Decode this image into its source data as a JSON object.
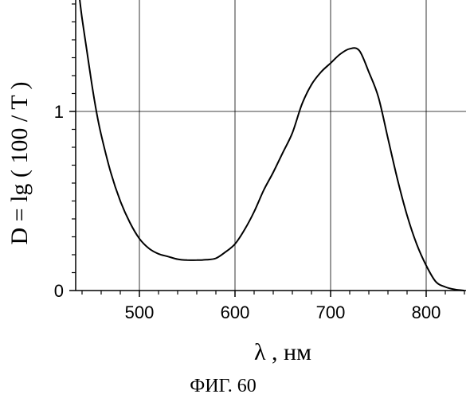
{
  "chart_data": {
    "type": "line",
    "title": "",
    "xlabel": "λ , нм",
    "ylabel": "D = lg ( 100 / T )",
    "caption": "ФИГ. 60",
    "xlim": [
      430,
      840
    ],
    "ylim": [
      0,
      1.65
    ],
    "grid": true,
    "x_ticks": [
      {
        "value": 500,
        "label": "500"
      },
      {
        "value": 600,
        "label": "600"
      },
      {
        "value": 700,
        "label": "700"
      },
      {
        "value": 800,
        "label": "800"
      }
    ],
    "y_ticks": [
      {
        "value": 0,
        "label": "0"
      },
      {
        "value": 1,
        "label": "1"
      }
    ],
    "x_minor_step": 20,
    "y_minor_step": 0.1,
    "series": [
      {
        "name": "",
        "color": "#000000",
        "x": [
          437,
          440,
          445,
          450,
          455,
          460,
          470,
          480,
          490,
          500,
          510,
          520,
          530,
          540,
          550,
          560,
          570,
          580,
          590,
          600,
          610,
          620,
          630,
          640,
          650,
          660,
          670,
          680,
          690,
          700,
          710,
          720,
          730,
          740,
          750,
          760,
          770,
          780,
          790,
          800,
          810,
          820,
          830,
          840
        ],
        "values": [
          1.65,
          1.52,
          1.34,
          1.16,
          1.0,
          0.87,
          0.66,
          0.5,
          0.38,
          0.29,
          0.235,
          0.205,
          0.19,
          0.175,
          0.17,
          0.17,
          0.172,
          0.18,
          0.215,
          0.26,
          0.34,
          0.44,
          0.56,
          0.66,
          0.77,
          0.88,
          1.04,
          1.15,
          1.22,
          1.27,
          1.32,
          1.35,
          1.34,
          1.22,
          1.08,
          0.85,
          0.62,
          0.42,
          0.26,
          0.14,
          0.05,
          0.02,
          0.006,
          0.0
        ]
      }
    ]
  }
}
